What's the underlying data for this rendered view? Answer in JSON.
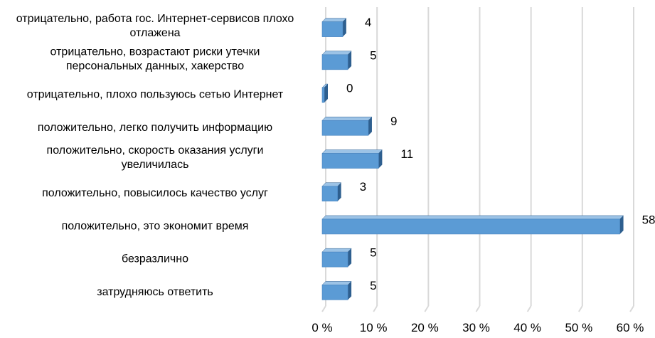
{
  "chart_data": {
    "type": "bar",
    "orientation": "horizontal",
    "style": "3d",
    "title": "",
    "xlabel": "",
    "ylabel": "",
    "xlim": [
      0,
      60
    ],
    "grid": true,
    "legend": "none",
    "bar_color": "#5b9bd5",
    "bar_side_color": "#2e5f8f",
    "bar_top_color": "#9cc3e6",
    "gridline_color": "#d9d9d9",
    "text_color": "#000000",
    "x_ticks": [
      {
        "value": 0,
        "label": "0 %"
      },
      {
        "value": 10,
        "label": "10 %"
      },
      {
        "value": 20,
        "label": "20 %"
      },
      {
        "value": 30,
        "label": "30 %"
      },
      {
        "value": 40,
        "label": "40 %"
      },
      {
        "value": 50,
        "label": "50 %"
      },
      {
        "value": 60,
        "label": "60 %"
      }
    ],
    "categories": [
      [
        "отрицательно, работа гос. Интернет-сервисов плохо",
        "отлажена"
      ],
      [
        "отрицательно, возрастают риски утечки",
        "персональных данных, хакерство"
      ],
      [
        "отрицательно, плохо пользуюсь сетью Интернет"
      ],
      [
        "положительно, легко получить информацию"
      ],
      [
        "положительно, скорость оказания услуги",
        "увеличилась"
      ],
      [
        "положительно, повысилось качество услуг"
      ],
      [
        "положительно, это экономит время"
      ],
      [
        "безразлично"
      ],
      [
        "затрудняюсь ответить"
      ]
    ],
    "values": [
      4,
      5,
      0,
      9,
      11,
      3,
      58,
      5,
      5
    ],
    "data_labels": [
      "4",
      "5",
      "0",
      "9",
      "11",
      "3",
      "58",
      "5",
      "5"
    ]
  }
}
